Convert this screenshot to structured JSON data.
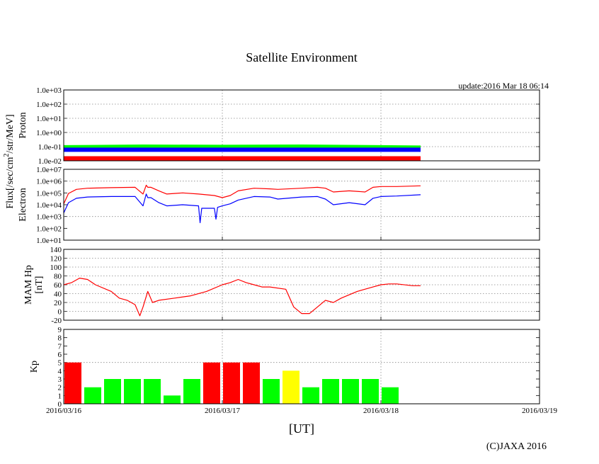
{
  "title": "Satellite Environment",
  "update_text": "update:2016 Mar 18 06:14",
  "copyright": "(C)JAXA 2016",
  "xlabel": "[UT]",
  "x_ticks": [
    "2016/03/16",
    "2016/03/17",
    "2016/03/18",
    "2016/03/19"
  ],
  "colors": {
    "red": "#ff0000",
    "blue": "#0000ff",
    "green": "#00ff00",
    "yellow": "#ffff00",
    "grid": "#888888"
  },
  "chart_data": [
    {
      "type": "line",
      "panel": "proton",
      "ylabel": "Proton",
      "yscale": "log",
      "ylim": [
        0.01,
        1000
      ],
      "y_ticks": [
        "1.0e-02",
        "1.0e-01",
        "1.0e+00",
        "1.0e+01",
        "1.0e+02",
        "1.0e+03"
      ],
      "xlim_days": [
        0,
        3
      ],
      "series": [
        {
          "color": "#00ff00",
          "x": [
            0,
            0.5,
            1.0,
            1.5,
            2.0,
            2.25
          ],
          "y": [
            0.09,
            0.1,
            0.095,
            0.1,
            0.09,
            0.085
          ]
        },
        {
          "color": "#0000ff",
          "x": [
            0,
            0.5,
            1.0,
            1.5,
            2.0,
            2.25
          ],
          "y": [
            0.06,
            0.06,
            0.06,
            0.06,
            0.06,
            0.06
          ]
        },
        {
          "color": "#ff0000",
          "x": [
            0,
            0.5,
            1.0,
            1.5,
            2.0,
            2.25
          ],
          "y": [
            0.015,
            0.015,
            0.015,
            0.015,
            0.015,
            0.015
          ]
        }
      ]
    },
    {
      "type": "line",
      "panel": "electron",
      "ylabel": "Electron",
      "yscale": "log",
      "ylim": [
        10,
        10000000
      ],
      "y_ticks": [
        "1.0e+01",
        "1.0e+02",
        "1.0e+03",
        "1.0e+04",
        "1.0e+05",
        "1.0e+06",
        "1.0e+07"
      ],
      "xlim_days": [
        0,
        3
      ],
      "series": [
        {
          "color": "#ff0000",
          "x": [
            0,
            0.03,
            0.08,
            0.15,
            0.3,
            0.45,
            0.5,
            0.52,
            0.53,
            0.55,
            0.6,
            0.65,
            0.75,
            0.85,
            0.95,
            1.0,
            1.05,
            1.1,
            1.2,
            1.3,
            1.35,
            1.5,
            1.6,
            1.65,
            1.7,
            1.8,
            1.9,
            1.95,
            2.0,
            2.1,
            2.25
          ],
          "y": [
            12000,
            90000,
            200000,
            250000,
            280000,
            300000,
            80000,
            450000,
            300000,
            300000,
            150000,
            80000,
            100000,
            80000,
            60000,
            40000,
            60000,
            150000,
            250000,
            220000,
            200000,
            250000,
            300000,
            250000,
            120000,
            150000,
            120000,
            300000,
            350000,
            350000,
            400000
          ]
        },
        {
          "color": "#0000ff",
          "x": [
            0,
            0.03,
            0.08,
            0.15,
            0.3,
            0.45,
            0.5,
            0.52,
            0.53,
            0.55,
            0.6,
            0.65,
            0.75,
            0.85,
            0.86,
            0.87,
            0.95,
            0.96,
            0.97,
            1.0,
            1.05,
            1.1,
            1.2,
            1.3,
            1.35,
            1.5,
            1.6,
            1.65,
            1.7,
            1.8,
            1.9,
            1.95,
            2.0,
            2.1,
            2.25
          ],
          "y": [
            2000,
            15000,
            35000,
            45000,
            50000,
            50000,
            8000,
            80000,
            40000,
            40000,
            15000,
            8000,
            10000,
            8000,
            300,
            5000,
            5000,
            600,
            6000,
            8000,
            12000,
            25000,
            50000,
            45000,
            30000,
            45000,
            50000,
            30000,
            10000,
            15000,
            10000,
            35000,
            50000,
            55000,
            70000
          ]
        }
      ]
    },
    {
      "type": "line",
      "panel": "mam_hp",
      "ylabel": "MAM Hp [nT]",
      "ylim": [
        -20,
        140
      ],
      "y_ticks": [
        "-20",
        "0",
        "20",
        "40",
        "60",
        "80",
        "100",
        "120",
        "140"
      ],
      "xlim_days": [
        0,
        3
      ],
      "series": [
        {
          "color": "#ff0000",
          "x": [
            0,
            0.05,
            0.1,
            0.15,
            0.2,
            0.3,
            0.35,
            0.4,
            0.45,
            0.48,
            0.5,
            0.53,
            0.56,
            0.6,
            0.7,
            0.8,
            0.9,
            1.0,
            1.05,
            1.1,
            1.15,
            1.2,
            1.25,
            1.3,
            1.4,
            1.45,
            1.5,
            1.55,
            1.6,
            1.65,
            1.7,
            1.75,
            1.85,
            1.95,
            2.0,
            2.05,
            2.1,
            2.2,
            2.25
          ],
          "y": [
            60,
            65,
            75,
            72,
            60,
            45,
            30,
            25,
            15,
            -10,
            10,
            45,
            20,
            25,
            30,
            35,
            45,
            60,
            65,
            72,
            65,
            60,
            55,
            55,
            50,
            10,
            -5,
            -5,
            10,
            25,
            20,
            30,
            45,
            55,
            60,
            62,
            62,
            58,
            58
          ]
        }
      ]
    },
    {
      "type": "bar",
      "panel": "kp",
      "ylabel": "Kp",
      "ylim": [
        0,
        9
      ],
      "y_ticks": [
        "0",
        "1",
        "2",
        "3",
        "4",
        "5",
        "6",
        "7",
        "8",
        "9"
      ],
      "xlim_days": [
        0,
        3
      ],
      "bar_width_days": 0.125,
      "x_start_days": [
        0,
        0.125,
        0.25,
        0.375,
        0.5,
        0.625,
        0.75,
        0.875,
        1.0,
        1.125,
        1.25,
        1.375,
        1.5,
        1.625,
        1.75,
        1.875,
        2.0
      ],
      "values": [
        5,
        2,
        3,
        3,
        3,
        1,
        3,
        5,
        5,
        5,
        3,
        4,
        2,
        3,
        3,
        3,
        2
      ]
    }
  ]
}
